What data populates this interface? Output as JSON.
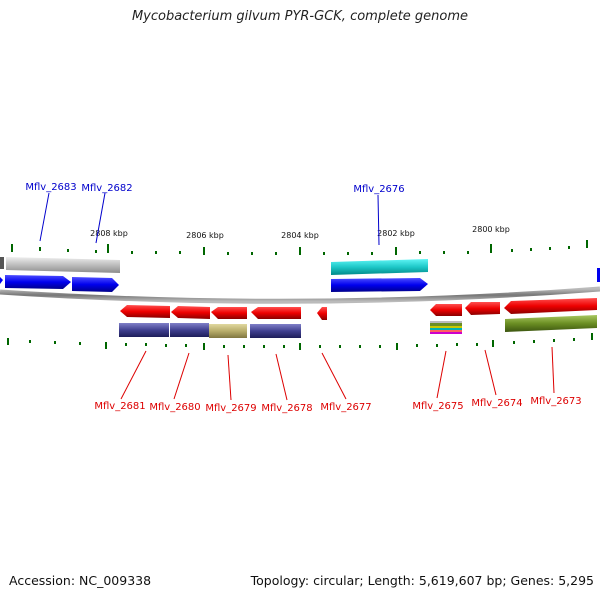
{
  "title": "Mycobacterium gilvum PYR-GCK, complete genome",
  "footer": {
    "accession": "Accession: NC_009338",
    "summary": "Topology: circular; Length: 5,619,607 bp; Genes: 5,295"
  },
  "scale_labels": [
    "2808 kbp",
    "2806 kbp",
    "2804 kbp",
    "2802 kbp",
    "2800 kbp"
  ],
  "colors": {
    "forward_label": "#0000cc",
    "reverse_label": "#dd0000",
    "forward_gene": "#0000ee",
    "reverse_gene": "#ee0000",
    "backbone": "#888888",
    "tick": "#006600"
  },
  "forward_genes": [
    "Mflv_2683",
    "Mflv_2682",
    "Mflv_2676"
  ],
  "reverse_genes": [
    "Mflv_2681",
    "Mflv_2680",
    "Mflv_2679",
    "Mflv_2678",
    "Mflv_2677",
    "Mflv_2675",
    "Mflv_2674",
    "Mflv_2673"
  ]
}
